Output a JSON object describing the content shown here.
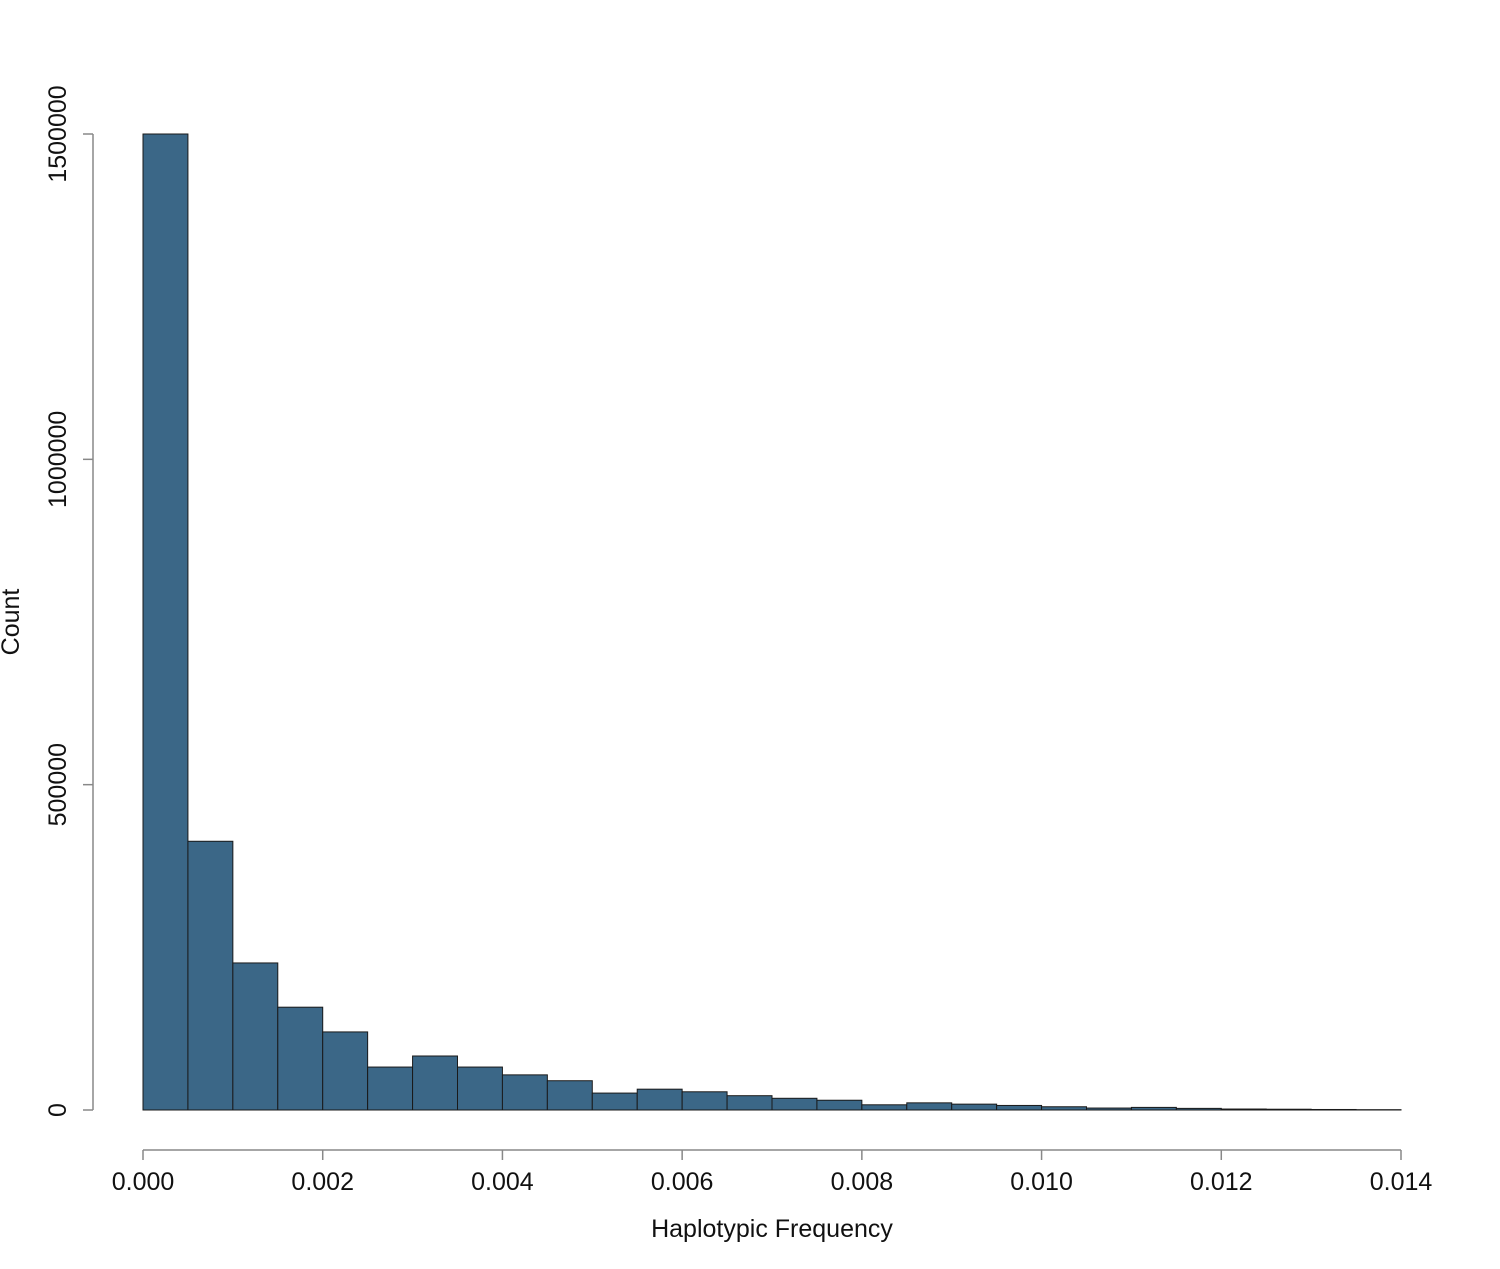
{
  "chart_data": {
    "type": "histogram",
    "x_label": "Haplotypic Frequency",
    "y_label": "Count",
    "bins": [
      0,
      0.0005,
      0.001,
      0.0015,
      0.002,
      0.0025,
      0.003,
      0.0035,
      0.004,
      0.0045,
      0.005,
      0.0055,
      0.006,
      0.0065,
      0.007,
      0.0075,
      0.008,
      0.0085,
      0.009,
      0.0095,
      0.01,
      0.0105,
      0.011,
      0.0115,
      0.012,
      0.0125,
      0.013,
      0.0135,
      0.014
    ],
    "counts": [
      1500000,
      413000,
      226000,
      158000,
      120000,
      66000,
      83000,
      66000,
      54000,
      45000,
      26000,
      32000,
      28000,
      22000,
      18000,
      15000,
      8000,
      11000,
      9000,
      7000,
      5000,
      3000,
      4000,
      2500,
      1500,
      1200,
      800,
      500
    ],
    "color": "#3b6787",
    "xlim": [
      0,
      0.014
    ],
    "xticks": [
      {
        "value": 0,
        "label": "0.000"
      },
      {
        "value": 0.002,
        "label": "0.002"
      },
      {
        "value": 0.004,
        "label": "0.004"
      },
      {
        "value": 0.006,
        "label": "0.006"
      },
      {
        "value": 0.008,
        "label": "0.008"
      },
      {
        "value": 0.01,
        "label": "0.010"
      },
      {
        "value": 0.012,
        "label": "0.012"
      },
      {
        "value": 0.014,
        "label": "0.014"
      }
    ],
    "ylim": [
      0,
      1500000
    ],
    "yticks": [
      0,
      500000,
      1000000,
      1500000
    ]
  }
}
